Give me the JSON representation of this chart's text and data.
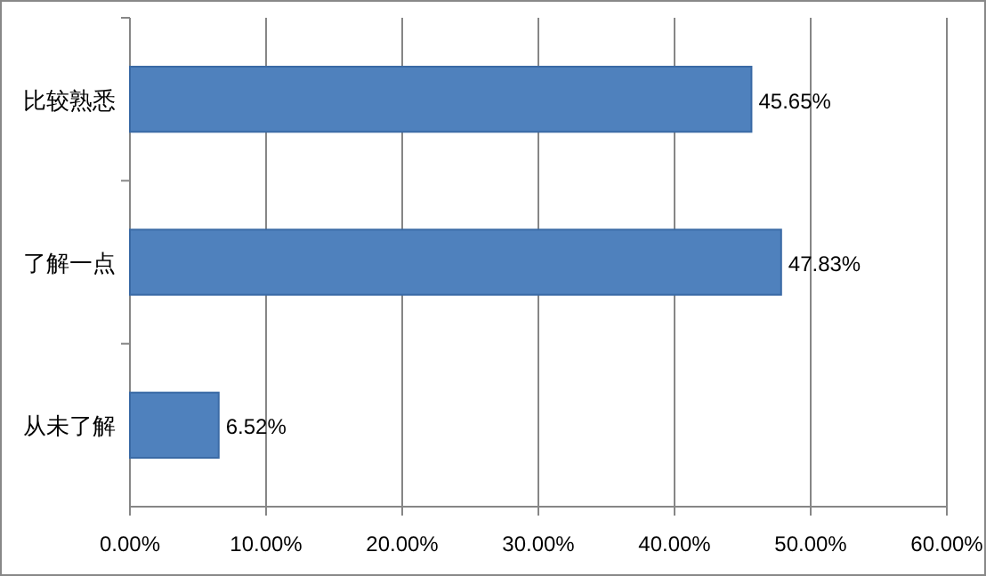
{
  "chart_data": {
    "type": "bar",
    "orientation": "horizontal",
    "categories": [
      "比较熟悉",
      "了解一点",
      "从未了解"
    ],
    "values": [
      45.65,
      47.83,
      6.52
    ],
    "color": "#4f81bd",
    "value_labels": [
      "45.65%",
      "47.83%",
      "6.52%"
    ],
    "xlim": [
      0,
      60
    ],
    "xticks": [
      {
        "value": 0,
        "label": "0.00%"
      },
      {
        "value": 10,
        "label": "10.00%"
      },
      {
        "value": 20,
        "label": "20.00%"
      },
      {
        "value": 30,
        "label": "30.00%"
      },
      {
        "value": 40,
        "label": "40.00%"
      },
      {
        "value": 50,
        "label": "50.00%"
      },
      {
        "value": 60,
        "label": "60.00%"
      }
    ],
    "grid": "x"
  }
}
